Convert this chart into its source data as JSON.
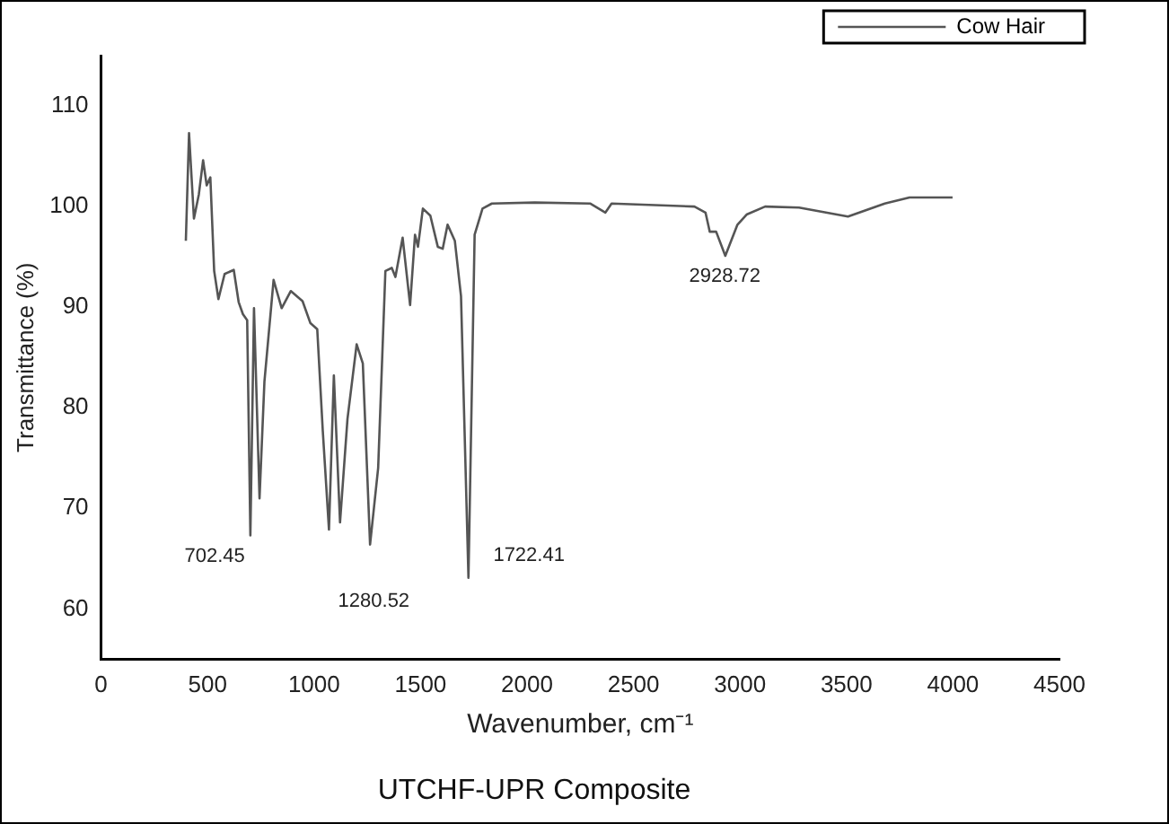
{
  "chart_data": {
    "type": "line",
    "title": "UTCHF-UPR Composite",
    "xlabel": "Wavenumber, cm⁻¹",
    "ylabel": "Transmittance (%)",
    "xlim": [
      0,
      4500
    ],
    "xticks": [
      0,
      500,
      1000,
      1500,
      2000,
      2500,
      3000,
      3500,
      4000,
      4500
    ],
    "ylim": [
      55,
      115
    ],
    "yticks": [
      60,
      70,
      80,
      90,
      100,
      110
    ],
    "grid": false,
    "legend": "top right",
    "marker": "none",
    "line_style": "solid",
    "series": [
      {
        "name": "Cow Hair",
        "color": "#555555",
        "x": [
          398,
          413,
          436,
          459,
          479,
          496,
          513,
          531,
          551,
          580,
          623,
          646,
          666,
          686,
          701,
          718,
          744,
          767,
          810,
          848,
          891,
          946,
          983,
          1015,
          1041,
          1070,
          1093,
          1122,
          1157,
          1200,
          1229,
          1263,
          1301,
          1335,
          1365,
          1382,
          1416,
          1451,
          1474,
          1488,
          1511,
          1546,
          1581,
          1604,
          1627,
          1661,
          1690,
          1725,
          1754,
          1791,
          1835,
          2036,
          2296,
          2368,
          2397,
          2786,
          2838,
          2858,
          2888,
          2931,
          2988,
          3031,
          3118,
          3277,
          3507,
          3680,
          3796,
          3998
        ],
        "values": [
          96.6,
          107.3,
          98.8,
          101.2,
          104.6,
          102.1,
          102.9,
          93.6,
          90.8,
          93.3,
          93.7,
          90.5,
          89.3,
          88.7,
          67.3,
          89.9,
          71.0,
          82.6,
          92.7,
          89.9,
          91.6,
          90.6,
          88.4,
          87.8,
          77.7,
          67.9,
          83.2,
          68.6,
          78.9,
          86.3,
          84.4,
          66.4,
          74.0,
          93.6,
          93.9,
          93.0,
          96.9,
          90.2,
          97.2,
          96.0,
          99.8,
          99.1,
          96.0,
          95.8,
          98.2,
          96.6,
          91.1,
          63.1,
          97.2,
          99.8,
          100.3,
          100.4,
          100.3,
          99.4,
          100.3,
          100.0,
          99.4,
          97.5,
          97.5,
          95.1,
          98.2,
          99.2,
          100.0,
          99.9,
          99.0,
          100.3,
          100.9,
          100.9
        ]
      }
    ],
    "annotations": [
      {
        "text": "702.45",
        "x": 702.45,
        "y": 67.3
      },
      {
        "text": "1280.52",
        "x": 1280.52,
        "y": 66.4
      },
      {
        "text": "1722.41",
        "x": 1722.41,
        "y": 63.1
      },
      {
        "text": "2928.72",
        "x": 2928.72,
        "y": 95.1
      }
    ]
  }
}
